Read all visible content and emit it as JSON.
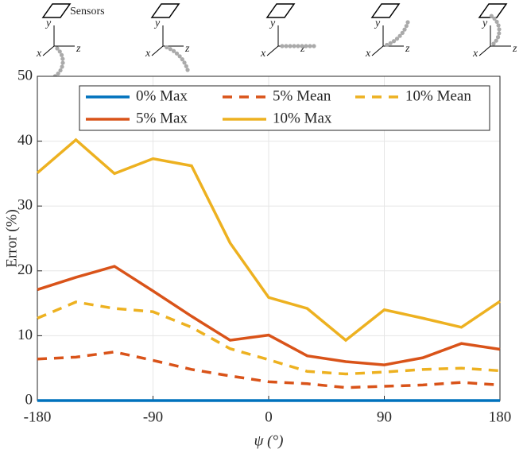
{
  "chart_data": {
    "type": "line",
    "xlabel": "ψ (°)",
    "ylabel": "Error (%)",
    "x": [
      -180,
      -150,
      -120,
      -90,
      -60,
      -30,
      0,
      30,
      60,
      90,
      120,
      150,
      180
    ],
    "xlim": [
      -180,
      180
    ],
    "xticks": [
      -180,
      -90,
      0,
      90,
      180
    ],
    "ylim": [
      0,
      50
    ],
    "yticks": [
      0,
      10,
      20,
      30,
      40,
      50
    ],
    "grid": true,
    "legend": "top",
    "series": [
      {
        "name": "0% Max",
        "color": "#0072bd",
        "style": "solid",
        "values": [
          0,
          0,
          0,
          0,
          0,
          0,
          0,
          0,
          0,
          0,
          0,
          0,
          0
        ]
      },
      {
        "name": "5% Mean",
        "color": "#d95319",
        "style": "dashed",
        "values": [
          6.4,
          6.7,
          7.5,
          6.2,
          4.8,
          3.8,
          2.9,
          2.6,
          2.0,
          2.2,
          2.4,
          2.8,
          2.4
        ]
      },
      {
        "name": "10% Mean",
        "color": "#edb120",
        "style": "dashed",
        "values": [
          12.7,
          15.2,
          14.2,
          13.7,
          11.3,
          8.0,
          6.3,
          4.5,
          4.1,
          4.4,
          4.8,
          5.0,
          4.6
        ]
      },
      {
        "name": "5% Max",
        "color": "#d95319",
        "style": "solid",
        "values": [
          17.1,
          19.0,
          20.7,
          16.9,
          13.0,
          9.3,
          10.1,
          6.9,
          6.0,
          5.5,
          6.6,
          8.8,
          7.9
        ]
      },
      {
        "name": "10% Max",
        "color": "#edb120",
        "style": "solid",
        "values": [
          35.1,
          40.2,
          35.0,
          37.3,
          36.2,
          24.3,
          15.9,
          14.2,
          9.3,
          14.0,
          12.7,
          11.3,
          15.3
        ]
      }
    ],
    "annotation": "Sensors",
    "icon_axis_labels": [
      "x",
      "y",
      "z"
    ]
  }
}
